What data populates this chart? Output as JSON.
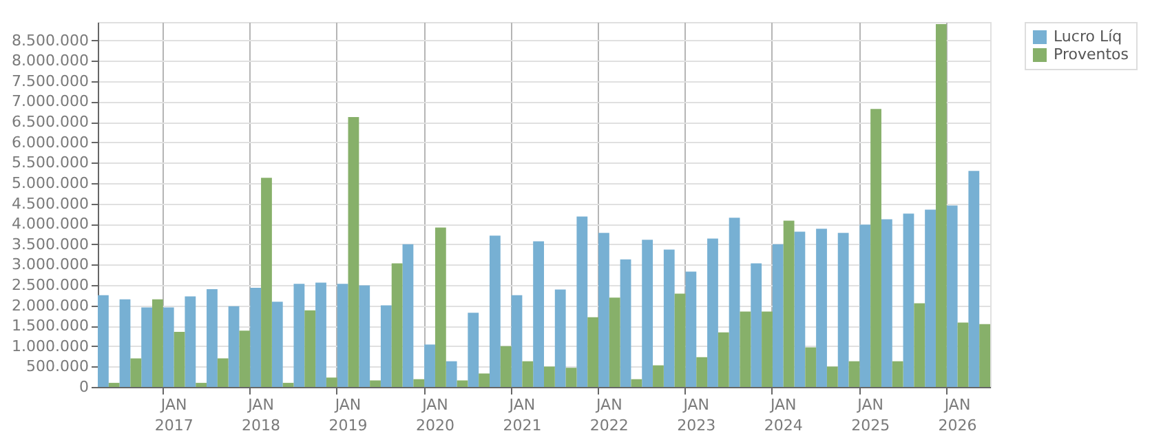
{
  "chart_data": {
    "type": "bar",
    "categories": [
      null,
      null,
      null,
      "JAN 2017",
      null,
      null,
      null,
      "JAN 2018",
      null,
      null,
      null,
      "JAN 2019",
      null,
      null,
      null,
      "JAN 2020",
      null,
      null,
      null,
      "JAN 2021",
      null,
      null,
      null,
      "JAN 2022",
      null,
      null,
      null,
      "JAN 2023",
      null,
      null,
      null,
      "JAN 2024",
      null,
      null,
      null,
      "JAN 2025",
      null,
      null,
      null,
      "JAN 2026",
      null
    ],
    "series": [
      {
        "name": "Lucro Líq",
        "color": "#77b0d3",
        "values": [
          2250000,
          2150000,
          1950000,
          1950000,
          2220000,
          2400000,
          1980000,
          2430000,
          2090000,
          2530000,
          2560000,
          2530000,
          2490000,
          2000000,
          3500000,
          1040000,
          630000,
          1820000,
          3710000,
          2250000,
          3570000,
          2390000,
          4180000,
          3780000,
          3130000,
          3610000,
          3370000,
          2830000,
          3640000,
          4150000,
          3030000,
          3500000,
          3810000,
          3880000,
          3780000,
          3980000,
          4110000,
          4250000,
          4350000,
          4450000,
          5300000
        ]
      },
      {
        "name": "Proventos",
        "color": "#87b06a",
        "values": [
          100000,
          700000,
          2150000,
          1350000,
          100000,
          700000,
          1380000,
          5130000,
          100000,
          1880000,
          230000,
          6620000,
          160000,
          3030000,
          190000,
          3910000,
          160000,
          330000,
          1000000,
          630000,
          500000,
          470000,
          1710000,
          2190000,
          190000,
          530000,
          2290000,
          730000,
          1340000,
          1850000,
          1850000,
          4080000,
          970000,
          500000,
          630000,
          6820000,
          630000,
          2050000,
          8900000,
          1580000,
          1540000
        ]
      }
    ],
    "ylim": [
      0,
      8950000
    ],
    "yticks": [
      0,
      {
        "value": 500000,
        "label": "500.000"
      },
      {
        "value": 1000000,
        "label": "1.000.000"
      },
      {
        "value": 1500000,
        "label": "1.500.000"
      },
      {
        "value": 2000000,
        "label": "2.000.000"
      },
      {
        "value": 2500000,
        "label": "2.500.000"
      },
      {
        "value": 3000000,
        "label": "3.000.000"
      },
      {
        "value": 3500000,
        "label": "3.500.000"
      },
      {
        "value": 4000000,
        "label": "4.000.000"
      },
      {
        "value": 4500000,
        "label": "4.500.000"
      },
      {
        "value": 5000000,
        "label": "5.000.000"
      },
      {
        "value": 5500000,
        "label": "5.500.000"
      },
      {
        "value": 6000000,
        "label": "6.000.000"
      },
      {
        "value": 6500000,
        "label": "6.500.000"
      },
      {
        "value": 7000000,
        "label": "7.000.000"
      },
      {
        "value": 7500000,
        "label": "7.500.000"
      },
      {
        "value": 8000000,
        "label": "8.000.000"
      },
      {
        "value": 8500000,
        "label": "8.500.000"
      }
    ],
    "grid": true,
    "legend": "top right"
  }
}
